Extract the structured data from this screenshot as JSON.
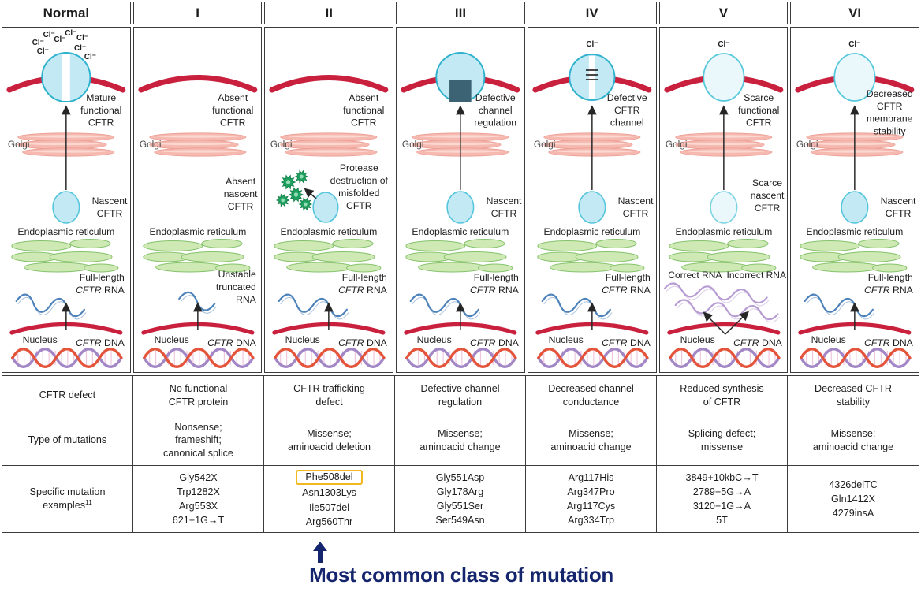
{
  "header": {
    "columns": [
      "Normal",
      "I",
      "II",
      "III",
      "IV",
      "V",
      "VI"
    ]
  },
  "rows": {
    "defect": {
      "label": "CFTR defect",
      "values": [
        [
          "No functional",
          "CFTR protein"
        ],
        [
          "CFTR trafficking",
          "defect"
        ],
        [
          "Defective channel",
          "regulation"
        ],
        [
          "Decreased channel",
          "conductance"
        ],
        [
          "Reduced synthesis",
          "of CFTR"
        ],
        [
          "Decreased CFTR",
          "stability"
        ]
      ]
    },
    "mutation_types": {
      "label": "Type of mutations",
      "values": [
        [
          "Nonsense;",
          "frameshift;",
          "canonical splice"
        ],
        [
          "Missense;",
          "aminoacid deletion"
        ],
        [
          "Missense;",
          "aminoacid change"
        ],
        [
          "Missense;",
          "aminoacid change"
        ],
        [
          "Splicing defect;",
          "missense"
        ],
        [
          "Missense;",
          "aminoacid change"
        ]
      ]
    },
    "examples": {
      "label_lines": [
        "Specific mutation",
        "examples"
      ],
      "superscript": "11",
      "values": [
        [
          "Gly542X",
          "Trp1282X",
          "Arg553X",
          "621+1G→T"
        ],
        [
          "Phe508del",
          "Asn1303Lys",
          "Ile507del",
          "Arg560Thr"
        ],
        [
          "Gly551Asp",
          "Gly178Arg",
          "Gly551Ser",
          "Ser549Asn"
        ],
        [
          "Arg117His",
          "Arg347Pro",
          "Arg117Cys",
          "Arg334Trp"
        ],
        [
          "3849+10kbC→T",
          "2789+5G→A",
          "3120+1G→A",
          "5T"
        ],
        [
          "4326delTC",
          "Gln1412X",
          "4279insA"
        ]
      ],
      "highlight": {
        "column_index": 1,
        "line_index": 0
      }
    }
  },
  "annotation": {
    "text": "Most common class of mutation",
    "color": "#15256d"
  },
  "diagram": {
    "palette": {
      "membrane": "#c9203e",
      "protein_fill": "#c3e9f5",
      "protein_stroke": "#2fb2cd",
      "pale_fill": "#eaf7fb",
      "golgi": "#f6b9b0",
      "er_fill": "#cfe9b5",
      "er_stroke": "#85c26c",
      "rna_blue": "#4d82ba",
      "rna_purple": "#b79bd3",
      "dna_red": "#e4543b",
      "dna_purple": "#a286c6",
      "protease_green": "#1fa05f",
      "block_square": "#3c6373",
      "arrow": "#262626",
      "text": "#1d1d1d",
      "golgi_text": "#4a4a4a",
      "highlight_box": "#f3b71f"
    },
    "shared_labels": {
      "golgi": "Golgi",
      "er": "Endoplasmic reticulum",
      "nucleus": "Nucleus",
      "dna": "CFTR DNA",
      "cl_ion": "Cl⁻"
    },
    "columns": [
      {
        "id": "normal",
        "protein": "open-channel",
        "cl_count": 8,
        "arrow_to_membrane": true,
        "top_label": [
          "Mature",
          "functional",
          "CFTR"
        ],
        "nascent": "normal",
        "nascent_label": [
          "Nascent",
          "CFTR"
        ],
        "rna": "full",
        "rna_label": [
          "Full-length",
          "CFTR RNA"
        ]
      },
      {
        "id": "I",
        "protein": "none",
        "cl_count": 0,
        "arrow_to_membrane": false,
        "top_label": [
          "Absent",
          "functional",
          "CFTR"
        ],
        "nascent": "absent",
        "nascent_label": [
          "Absent",
          "nascent",
          "CFTR"
        ],
        "rna": "truncated",
        "rna_label": [
          "Unstable",
          "truncated",
          "RNA"
        ]
      },
      {
        "id": "II",
        "protein": "none",
        "cl_count": 0,
        "arrow_to_membrane": false,
        "top_label": [
          "Absent",
          "functional",
          "CFTR"
        ],
        "nascent": "destroyed",
        "nascent_label": [
          "Protease",
          "destruction of",
          "misfolded",
          "CFTR"
        ],
        "rna": "full",
        "rna_label": [
          "Full-length",
          "CFTR RNA"
        ]
      },
      {
        "id": "III",
        "protein": "blocked-channel",
        "cl_count": 0,
        "arrow_to_membrane": true,
        "top_label": [
          "Defective",
          "channel",
          "regulation"
        ],
        "nascent": "normal",
        "nascent_label": [
          "Nascent",
          "CFTR"
        ],
        "rna": "full",
        "rna_label": [
          "Full-length",
          "CFTR RNA"
        ]
      },
      {
        "id": "IV",
        "protein": "lined-channel",
        "cl_count": 1,
        "arrow_to_membrane": true,
        "top_label": [
          "Defective",
          "CFTR",
          "channel"
        ],
        "nascent": "normal",
        "nascent_label": [
          "Nascent",
          "CFTR"
        ],
        "rna": "full",
        "rna_label": [
          "Full-length",
          "CFTR RNA"
        ]
      },
      {
        "id": "V",
        "protein": "pale-oval",
        "cl_count": 1,
        "arrow_to_membrane": true,
        "top_label": [
          "Scarce",
          "functional",
          "CFTR"
        ],
        "nascent": "pale",
        "nascent_label": [
          "Scarce",
          "nascent",
          "CFTR"
        ],
        "rna": "dual",
        "rna_label_left": "Correct RNA",
        "rna_label_right": "Incorrect RNA"
      },
      {
        "id": "VI",
        "protein": "pale-oval",
        "cl_count": 1,
        "arrow_to_membrane": true,
        "top_label": [
          "Decreased",
          "CFTR",
          "membrane",
          "stability"
        ],
        "nascent": "normal",
        "nascent_label": [
          "Nascent",
          "CFTR"
        ],
        "rna": "full",
        "rna_label": [
          "Full-length",
          "CFTR RNA"
        ]
      }
    ]
  }
}
